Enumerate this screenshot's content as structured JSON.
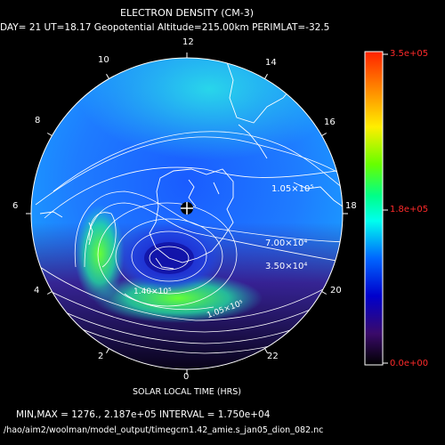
{
  "title": "ELECTRON DENSITY (CM-3)",
  "subtitle": "DAY= 21 UT=18.17 Geopotential Altitude=215.00km PERIMLAT=-32.5",
  "local_time_labels": [
    "12",
    "14",
    "16",
    "18",
    "20",
    "22",
    "0",
    "2",
    "4",
    "6",
    "8",
    "10"
  ],
  "colorbar": {
    "max_label": "3.5e+05",
    "mid_label": "1.8e+05",
    "min_label": "0.0e+00",
    "colors": [
      "#ff2200",
      "#ff8800",
      "#ffee00",
      "#66ff00",
      "#00ff66",
      "#00ffee",
      "#0066ff",
      "#0000cc",
      "#2a0a5a",
      "#000000"
    ]
  },
  "contour_labels": [
    {
      "text": "1.05×10⁵"
    },
    {
      "text": "7.00×10⁴"
    },
    {
      "text": "3.50×10⁴"
    },
    {
      "text": "1.40×10⁵"
    },
    {
      "text": "1.05×10⁵"
    }
  ],
  "x_axis_label": "SOLAR LOCAL TIME (HRS)",
  "stats_line": "MIN,MAX =      1276., 2.187e+05 INTERVAL =  1.750e+04",
  "file_path": "/hao/aim2/woolman/model_output/timegcm1.42_amie.s_jan05_dion_082.nc",
  "marker_icon": "crosshair-circle-icon"
}
